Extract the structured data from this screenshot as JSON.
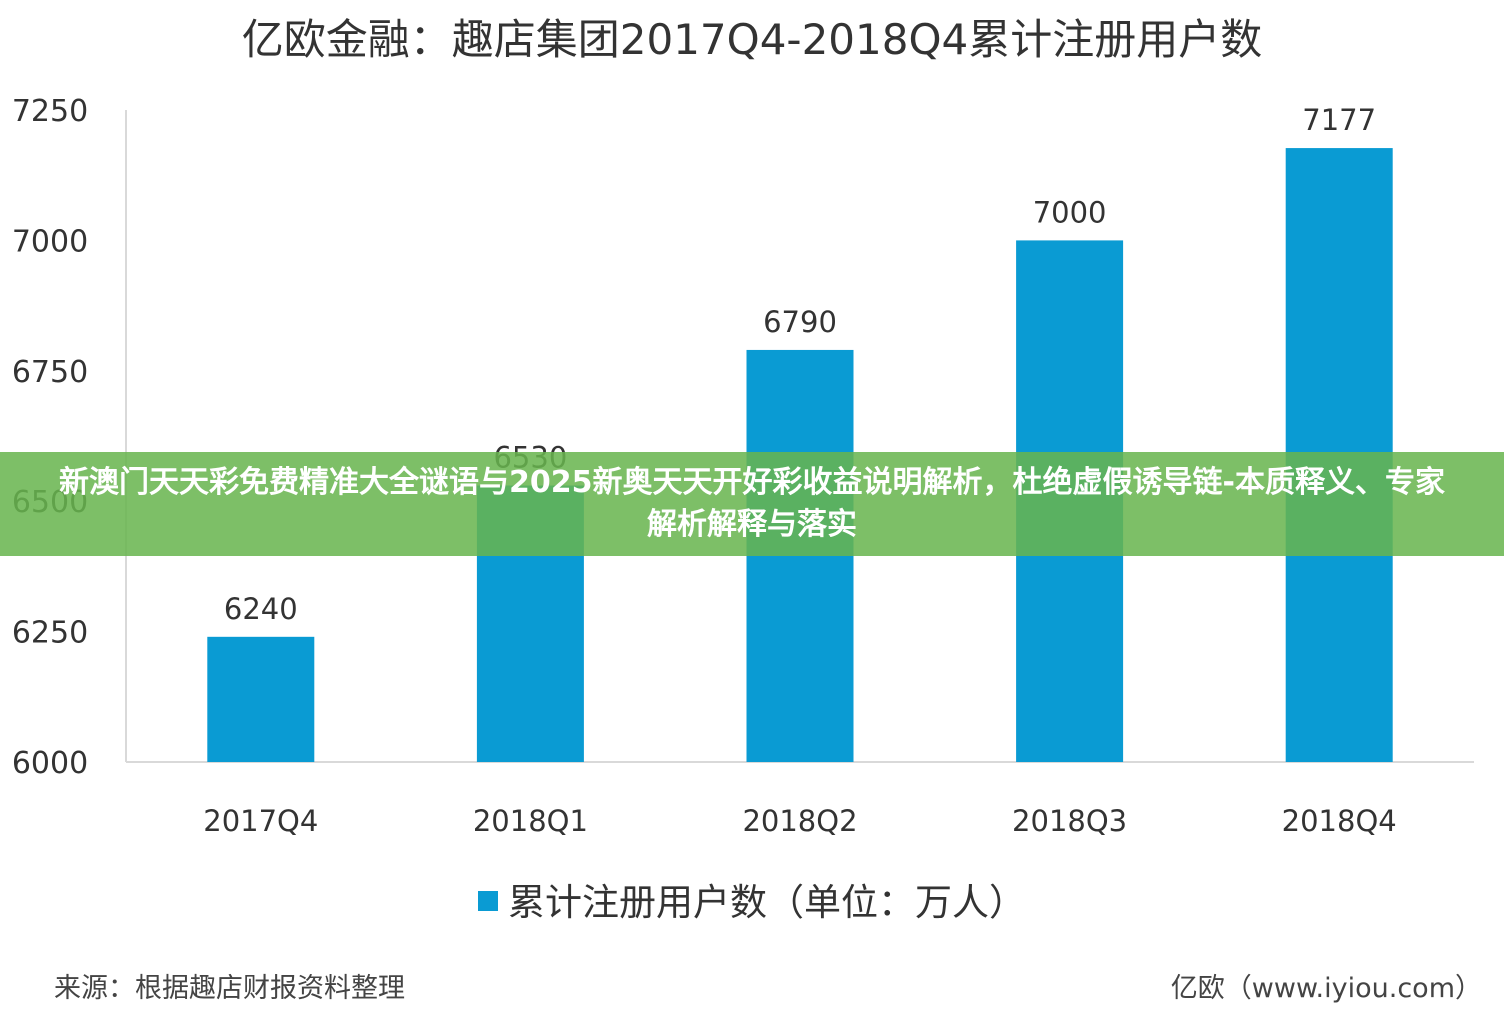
{
  "chart_data": {
    "type": "bar",
    "title": "亿欧金融：趣店集团2017Q4-2018Q4累计注册用户数",
    "categories": [
      "2017Q4",
      "2018Q1",
      "2018Q2",
      "2018Q3",
      "2018Q4"
    ],
    "series": [
      {
        "name": "累计注册用户数（单位：万人）",
        "values": [
          6240,
          6530,
          6790,
          7000,
          7177
        ]
      }
    ],
    "data_labels": [
      "6240",
      "6530",
      "6790",
      "7000",
      "7177"
    ],
    "ylim": [
      6000,
      7250
    ],
    "yticks": [
      6000,
      6250,
      6500,
      6750,
      7000,
      7250
    ],
    "ytick_labels": [
      "6000",
      "6250",
      "6500",
      "6750",
      "7000",
      "7250"
    ],
    "xlabel": "",
    "ylabel": "",
    "grid": false,
    "legend_position": "bottom",
    "bar_color": "#0a9bd3"
  },
  "footer": {
    "source": "来源：根据趣店财报资料整理",
    "credit": "亿欧（www.iyiou.com）"
  },
  "banner": {
    "text": "新澳门天天彩免费精准大全谜语与2025新奥天天开好彩收益说明解析，杜绝虚假诱导链-本质释义、专家解析解释与落实"
  }
}
